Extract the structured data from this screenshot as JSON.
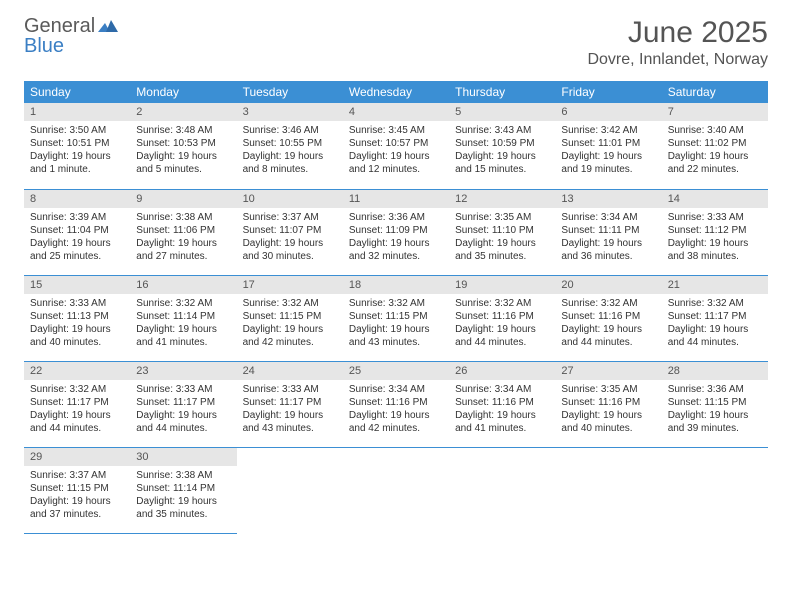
{
  "logo": {
    "text1": "General",
    "text2": "Blue"
  },
  "title": "June 2025",
  "location": "Dovre, Innlandet, Norway",
  "colors": {
    "header_bg": "#3b8fd4",
    "header_text": "#ffffff",
    "daynum_bg": "#e6e6e6",
    "border": "#3b8fd4",
    "text": "#333333",
    "logo_gray": "#5a5a5a",
    "logo_blue": "#3b7fc4"
  },
  "daysOfWeek": [
    "Sunday",
    "Monday",
    "Tuesday",
    "Wednesday",
    "Thursday",
    "Friday",
    "Saturday"
  ],
  "weeks": [
    [
      {
        "n": "1",
        "sr": "3:50 AM",
        "ss": "10:51 PM",
        "dl": "19 hours and 1 minute."
      },
      {
        "n": "2",
        "sr": "3:48 AM",
        "ss": "10:53 PM",
        "dl": "19 hours and 5 minutes."
      },
      {
        "n": "3",
        "sr": "3:46 AM",
        "ss": "10:55 PM",
        "dl": "19 hours and 8 minutes."
      },
      {
        "n": "4",
        "sr": "3:45 AM",
        "ss": "10:57 PM",
        "dl": "19 hours and 12 minutes."
      },
      {
        "n": "5",
        "sr": "3:43 AM",
        "ss": "10:59 PM",
        "dl": "19 hours and 15 minutes."
      },
      {
        "n": "6",
        "sr": "3:42 AM",
        "ss": "11:01 PM",
        "dl": "19 hours and 19 minutes."
      },
      {
        "n": "7",
        "sr": "3:40 AM",
        "ss": "11:02 PM",
        "dl": "19 hours and 22 minutes."
      }
    ],
    [
      {
        "n": "8",
        "sr": "3:39 AM",
        "ss": "11:04 PM",
        "dl": "19 hours and 25 minutes."
      },
      {
        "n": "9",
        "sr": "3:38 AM",
        "ss": "11:06 PM",
        "dl": "19 hours and 27 minutes."
      },
      {
        "n": "10",
        "sr": "3:37 AM",
        "ss": "11:07 PM",
        "dl": "19 hours and 30 minutes."
      },
      {
        "n": "11",
        "sr": "3:36 AM",
        "ss": "11:09 PM",
        "dl": "19 hours and 32 minutes."
      },
      {
        "n": "12",
        "sr": "3:35 AM",
        "ss": "11:10 PM",
        "dl": "19 hours and 35 minutes."
      },
      {
        "n": "13",
        "sr": "3:34 AM",
        "ss": "11:11 PM",
        "dl": "19 hours and 36 minutes."
      },
      {
        "n": "14",
        "sr": "3:33 AM",
        "ss": "11:12 PM",
        "dl": "19 hours and 38 minutes."
      }
    ],
    [
      {
        "n": "15",
        "sr": "3:33 AM",
        "ss": "11:13 PM",
        "dl": "19 hours and 40 minutes."
      },
      {
        "n": "16",
        "sr": "3:32 AM",
        "ss": "11:14 PM",
        "dl": "19 hours and 41 minutes."
      },
      {
        "n": "17",
        "sr": "3:32 AM",
        "ss": "11:15 PM",
        "dl": "19 hours and 42 minutes."
      },
      {
        "n": "18",
        "sr": "3:32 AM",
        "ss": "11:15 PM",
        "dl": "19 hours and 43 minutes."
      },
      {
        "n": "19",
        "sr": "3:32 AM",
        "ss": "11:16 PM",
        "dl": "19 hours and 44 minutes."
      },
      {
        "n": "20",
        "sr": "3:32 AM",
        "ss": "11:16 PM",
        "dl": "19 hours and 44 minutes."
      },
      {
        "n": "21",
        "sr": "3:32 AM",
        "ss": "11:17 PM",
        "dl": "19 hours and 44 minutes."
      }
    ],
    [
      {
        "n": "22",
        "sr": "3:32 AM",
        "ss": "11:17 PM",
        "dl": "19 hours and 44 minutes."
      },
      {
        "n": "23",
        "sr": "3:33 AM",
        "ss": "11:17 PM",
        "dl": "19 hours and 44 minutes."
      },
      {
        "n": "24",
        "sr": "3:33 AM",
        "ss": "11:17 PM",
        "dl": "19 hours and 43 minutes."
      },
      {
        "n": "25",
        "sr": "3:34 AM",
        "ss": "11:16 PM",
        "dl": "19 hours and 42 minutes."
      },
      {
        "n": "26",
        "sr": "3:34 AM",
        "ss": "11:16 PM",
        "dl": "19 hours and 41 minutes."
      },
      {
        "n": "27",
        "sr": "3:35 AM",
        "ss": "11:16 PM",
        "dl": "19 hours and 40 minutes."
      },
      {
        "n": "28",
        "sr": "3:36 AM",
        "ss": "11:15 PM",
        "dl": "19 hours and 39 minutes."
      }
    ],
    [
      {
        "n": "29",
        "sr": "3:37 AM",
        "ss": "11:15 PM",
        "dl": "19 hours and 37 minutes."
      },
      {
        "n": "30",
        "sr": "3:38 AM",
        "ss": "11:14 PM",
        "dl": "19 hours and 35 minutes."
      },
      null,
      null,
      null,
      null,
      null
    ]
  ],
  "labels": {
    "sunrise": "Sunrise: ",
    "sunset": "Sunset: ",
    "daylight": "Daylight: "
  }
}
